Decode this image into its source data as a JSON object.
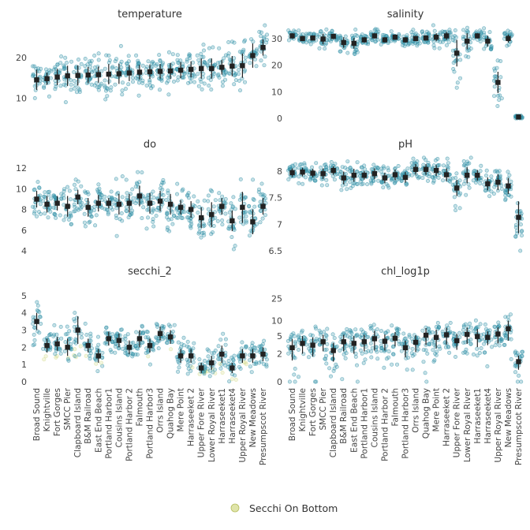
{
  "chart_data": {
    "type": "scatter",
    "sites": [
      "Broad Sound",
      "Knightville",
      "Fort Gorges",
      "SMCC Pier",
      "Clapboard Island",
      "B&M Railroad",
      "East End Beach",
      "Portland Harbor1",
      "Cousins Island",
      "Portland Harbor 2",
      "Falmouth",
      "Portland Harbor3",
      "Orrs Island",
      "Quahog Bay",
      "Mere Point",
      "Harraseeket 2",
      "Upper Fore River",
      "Lower Royal River",
      "Harraseeket1",
      "Harraseeket4",
      "Upper Royal River",
      "New Meadows",
      "Presumpscot River"
    ],
    "legend": {
      "label": "Secchi On Bottom",
      "color": "#d4db8c"
    },
    "colors": {
      "points": "#2e8fa6",
      "summary": "#222222"
    },
    "panels": [
      {
        "name": "temperature",
        "ticks": [
          10,
          20
        ],
        "ylim": [
          5,
          28
        ],
        "means": [
          14.5,
          14.8,
          15.2,
          15.5,
          15.6,
          15.7,
          15.8,
          15.9,
          16.0,
          16.2,
          16.4,
          16.5,
          16.6,
          16.7,
          16.9,
          17.1,
          17.3,
          17.3,
          17.6,
          17.9,
          18.0,
          20.5,
          22.5
        ],
        "errors": [
          2.5,
          1.5,
          2.0,
          2.5,
          2.5,
          2.0,
          2.0,
          2.5,
          2.5,
          2.0,
          1.8,
          1.8,
          1.8,
          2.0,
          2.0,
          2.0,
          2.5,
          2.5,
          1.8,
          2.5,
          3.0,
          3.0,
          2.0
        ]
      },
      {
        "name": "salinity",
        "ticks": [
          0,
          10,
          20,
          30
        ],
        "ylim": [
          0,
          35
        ],
        "means": [
          31.0,
          30.0,
          30.2,
          29.8,
          30.8,
          28.5,
          28.2,
          29.5,
          31.0,
          29.5,
          30.5,
          29.5,
          30.0,
          30.2,
          30.5,
          31.0,
          24.5,
          29.0,
          31.0,
          29.0,
          13.5,
          30.0,
          0.5
        ],
        "errors": [
          1.0,
          1.0,
          1.0,
          2.0,
          1.0,
          2.0,
          2.0,
          1.0,
          1.0,
          1.0,
          1.0,
          1.0,
          1.0,
          1.0,
          1.5,
          1.5,
          5.0,
          3.0,
          1.0,
          2.0,
          4.0,
          1.5,
          0.5
        ]
      },
      {
        "name": "do",
        "ticks": [
          4,
          6,
          8,
          10,
          12
        ],
        "ylim": [
          4,
          13
        ],
        "means": [
          9.0,
          8.5,
          8.6,
          8.3,
          9.2,
          8.2,
          8.6,
          8.6,
          8.5,
          8.6,
          9.3,
          8.6,
          8.8,
          8.5,
          8.2,
          8.0,
          7.2,
          7.5,
          8.3,
          6.9,
          8.2,
          6.8,
          8.3
        ],
        "errors": [
          0.8,
          0.8,
          0.7,
          1.0,
          0.7,
          0.9,
          0.8,
          0.5,
          1.0,
          0.9,
          1.0,
          1.0,
          1.0,
          1.0,
          0.7,
          0.8,
          1.0,
          1.2,
          0.8,
          1.0,
          1.5,
          1.2,
          0.8
        ]
      },
      {
        "name": "pH",
        "ticks": [
          6.5,
          7,
          7.5,
          8
        ],
        "ylim": [
          6.5,
          8.25
        ],
        "means": [
          7.97,
          7.98,
          7.96,
          7.95,
          8.01,
          7.87,
          7.92,
          7.92,
          7.95,
          7.87,
          7.93,
          7.88,
          8.03,
          8.03,
          8.01,
          7.93,
          7.68,
          7.92,
          7.92,
          7.76,
          7.79,
          7.72,
          7.13
        ],
        "errors": [
          0.08,
          0.08,
          0.08,
          0.1,
          0.08,
          0.12,
          0.12,
          0.08,
          0.1,
          0.1,
          0.1,
          0.1,
          0.1,
          0.1,
          0.1,
          0.12,
          0.15,
          0.15,
          0.1,
          0.12,
          0.15,
          0.15,
          0.3
        ]
      },
      {
        "name": "secchi_2",
        "ticks": [
          0,
          1,
          2,
          3,
          4,
          5
        ],
        "ylim": [
          0,
          5.5
        ],
        "means": [
          3.5,
          2.1,
          2.2,
          2.0,
          3.0,
          2.1,
          1.5,
          2.5,
          2.4,
          2.0,
          2.5,
          2.1,
          2.8,
          2.6,
          1.5,
          1.5,
          0.8,
          1.1,
          1.6,
          0.8,
          1.5,
          1.5,
          1.6
        ],
        "errors": [
          0.5,
          0.4,
          0.4,
          0.5,
          0.8,
          0.4,
          0.4,
          0.4,
          0.4,
          0.4,
          0.5,
          0.4,
          0.4,
          0.4,
          0.4,
          0.4,
          0.3,
          0.4,
          0.5,
          0.3,
          0.4,
          0.4,
          0.4
        ]
      },
      {
        "name": "chl_log1p",
        "ticks": [
          0,
          2,
          5,
          10,
          25
        ],
        "scale": "log1p",
        "ylim": [
          0,
          40
        ],
        "means": [
          2.8,
          3.5,
          3.2,
          3.8,
          2.4,
          3.8,
          3.5,
          3.8,
          4.4,
          3.9,
          4.5,
          2.8,
          3.7,
          5.2,
          4.7,
          5.3,
          4.0,
          5.4,
          4.9,
          4.7,
          5.5,
          7.0,
          1.2
        ],
        "errors": [
          1.5,
          1.5,
          1.5,
          1.5,
          1.2,
          1.5,
          1.5,
          1.5,
          2.0,
          1.5,
          1.5,
          1.2,
          1.5,
          2.0,
          2.0,
          2.0,
          1.5,
          2.0,
          2.0,
          1.5,
          2.0,
          3.0,
          0.6
        ]
      }
    ]
  }
}
